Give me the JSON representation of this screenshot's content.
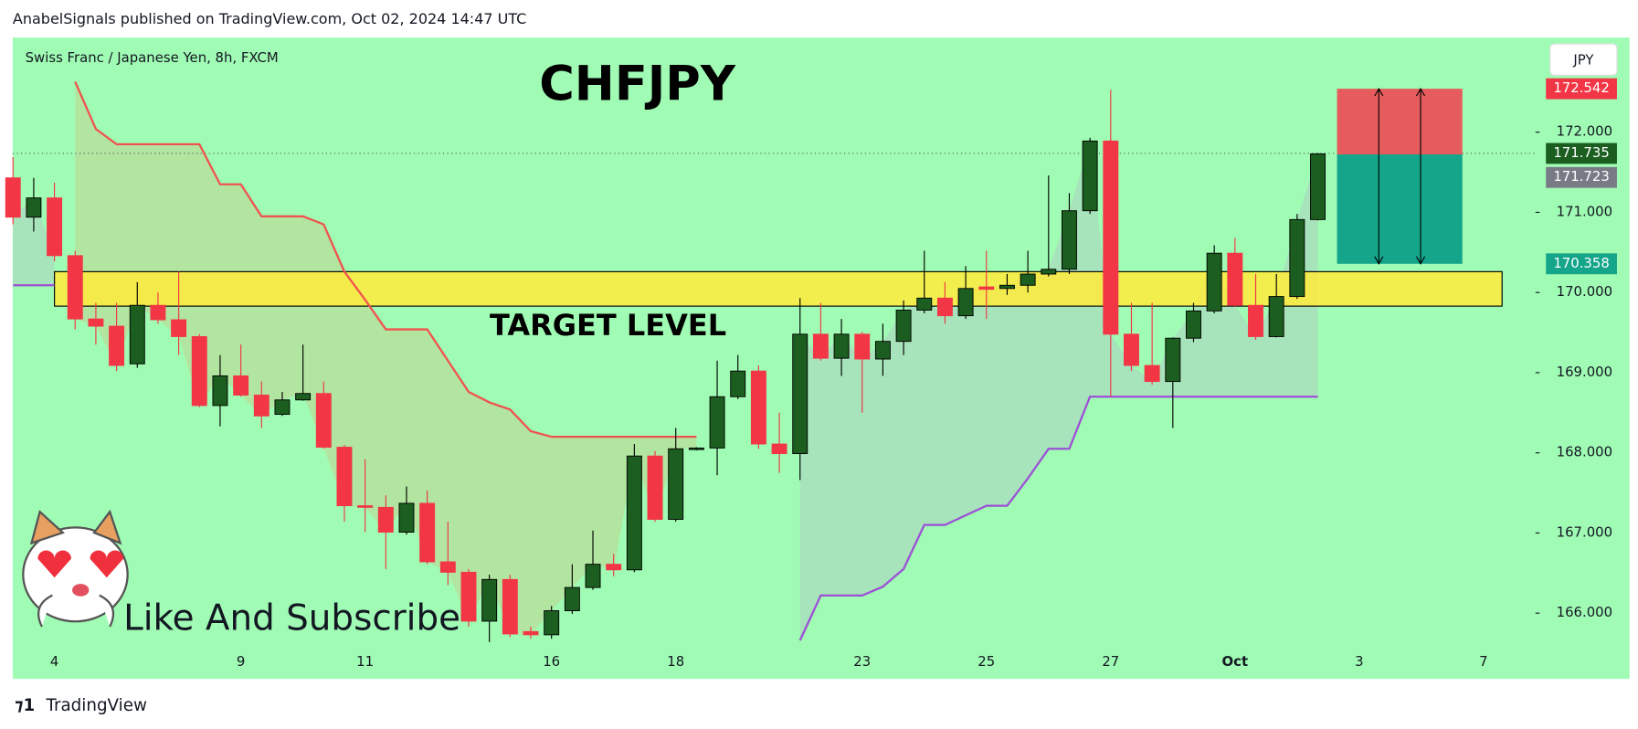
{
  "header": "AnabelSignals published on TradingView.com, Oct 02, 2024 14:47 UTC",
  "footer": "TradingView",
  "chart_data": {
    "type": "candlestick",
    "subtitle": "Swiss Franc / Japanese Yen, 8h, FXCM",
    "title": "CHFJPY",
    "annotation": "Like And Subscribe",
    "currency": "JPY",
    "categories": [
      null,
      null,
      "4",
      null,
      null,
      null,
      null,
      null,
      null,
      null,
      null,
      "9",
      null,
      null,
      null,
      null,
      null,
      "11",
      null,
      null,
      null,
      null,
      null,
      null,
      null,
      null,
      "16",
      null,
      null,
      null,
      null,
      null,
      "18",
      null,
      null,
      null,
      null,
      null,
      null,
      null,
      null,
      "23",
      null,
      null,
      null,
      null,
      null,
      "25",
      null,
      null,
      null,
      null,
      null,
      "27",
      null,
      null,
      null,
      null,
      null,
      "Oct",
      null,
      null,
      null,
      null,
      null,
      "3",
      null,
      null,
      null,
      null,
      null,
      "7"
    ],
    "open": [
      171.43,
      170.94,
      171.18,
      170.46,
      169.67,
      169.58,
      169.11,
      169.84,
      169.66,
      169.45,
      168.59,
      168.96,
      168.72,
      168.48,
      168.66,
      168.74,
      168.07,
      167.34,
      167.32,
      167.01,
      167.37,
      166.64,
      166.51,
      165.9,
      166.42,
      165.77,
      165.73,
      166.03,
      166.32,
      166.61,
      166.54,
      167.96,
      167.17,
      168.05,
      168.06,
      168.7,
      169.02,
      168.11,
      167.99,
      169.48,
      169.18,
      169.48,
      169.17,
      169.39,
      169.78,
      169.93,
      169.71,
      170.07,
      170.05,
      170.09,
      170.23,
      170.29,
      171.02,
      171.89,
      169.48,
      169.09,
      168.89,
      169.43,
      169.77,
      170.49,
      169.84,
      169.45,
      169.95,
      170.91,
      null,
      null,
      null,
      null,
      null,
      null,
      null,
      null
    ],
    "high": [
      171.69,
      171.43,
      171.37,
      170.52,
      169.87,
      169.87,
      170.13,
      170.0,
      170.26,
      169.48,
      169.22,
      169.35,
      168.89,
      168.76,
      169.35,
      168.89,
      168.1,
      167.92,
      167.47,
      167.58,
      167.53,
      167.14,
      166.55,
      166.48,
      166.48,
      165.83,
      166.09,
      166.61,
      167.03,
      166.74,
      168.11,
      168.02,
      168.31,
      168.07,
      169.15,
      169.22,
      169.09,
      168.5,
      169.93,
      169.87,
      169.67,
      169.51,
      169.61,
      169.9,
      170.52,
      170.13,
      170.33,
      170.52,
      170.23,
      170.52,
      171.46,
      171.24,
      171.93,
      172.53,
      169.87,
      169.87,
      169.44,
      169.87,
      170.59,
      170.68,
      170.23,
      170.23,
      170.98,
      171.74,
      null,
      null,
      null,
      null,
      null,
      null,
      null,
      null
    ],
    "low": [
      170.85,
      170.76,
      170.39,
      169.54,
      169.35,
      169.02,
      169.06,
      169.61,
      169.22,
      168.57,
      168.33,
      168.7,
      168.31,
      168.46,
      168.65,
      168.05,
      167.14,
      167.01,
      166.55,
      166.98,
      166.61,
      166.35,
      165.83,
      165.64,
      165.7,
      165.68,
      165.68,
      165.99,
      166.29,
      166.46,
      166.51,
      167.14,
      167.14,
      168.03,
      167.72,
      168.67,
      168.05,
      167.75,
      167.66,
      169.15,
      168.96,
      168.5,
      168.96,
      169.22,
      169.74,
      169.61,
      169.67,
      169.67,
      169.97,
      170.0,
      170.2,
      170.23,
      170.98,
      168.7,
      169.02,
      168.85,
      168.31,
      169.38,
      169.74,
      169.82,
      169.41,
      169.44,
      169.92,
      170.9,
      null,
      null,
      null,
      null,
      null,
      null,
      null,
      null
    ],
    "close": [
      170.94,
      171.18,
      170.46,
      169.67,
      169.58,
      169.09,
      169.84,
      169.66,
      169.45,
      168.59,
      168.96,
      168.72,
      168.46,
      168.66,
      168.74,
      168.07,
      167.34,
      167.32,
      167.01,
      167.37,
      166.64,
      166.51,
      165.9,
      166.42,
      165.74,
      165.73,
      166.03,
      166.32,
      166.61,
      166.54,
      167.96,
      167.17,
      168.05,
      168.06,
      168.7,
      169.02,
      168.11,
      167.99,
      169.48,
      169.18,
      169.48,
      169.17,
      169.39,
      169.78,
      169.93,
      169.71,
      170.05,
      170.04,
      170.09,
      170.23,
      170.29,
      171.02,
      171.89,
      169.48,
      169.09,
      168.89,
      169.43,
      169.77,
      170.49,
      169.84,
      169.45,
      169.95,
      170.91,
      171.73,
      null,
      null,
      null,
      null,
      null,
      null,
      null,
      null
    ],
    "up_color": "#1b5e20",
    "down_color": "#f23645",
    "series": [
      {
        "color": "#f0524f",
        "values": [
          null,
          null,
          null,
          172.63,
          172.04,
          171.85,
          171.85,
          171.85,
          171.85,
          171.85,
          171.35,
          171.35,
          170.95,
          170.95,
          170.95,
          170.85,
          170.26,
          169.91,
          169.54,
          169.54,
          169.54,
          169.15,
          168.76,
          168.63,
          168.54,
          168.27,
          168.2,
          168.2,
          168.2,
          168.2,
          168.2,
          168.2,
          168.2,
          168.2,
          null,
          null,
          null,
          null,
          null,
          null,
          null,
          null,
          null,
          null,
          null,
          null,
          null,
          null,
          null,
          null,
          null,
          null,
          null,
          null,
          null,
          null,
          null,
          null,
          null,
          null,
          null,
          null,
          null,
          null,
          null,
          null,
          null,
          null,
          null,
          null,
          null,
          null
        ]
      },
      {
        "color": "#9c4fd6",
        "values": [
          170.09,
          170.09,
          170.09,
          null,
          null,
          null,
          null,
          null,
          null,
          null,
          null,
          null,
          null,
          null,
          null,
          null,
          null,
          null,
          null,
          null,
          null,
          null,
          null,
          null,
          null,
          null,
          null,
          null,
          null,
          null,
          null,
          null,
          null,
          null,
          null,
          null,
          null,
          null,
          165.66,
          166.22,
          166.22,
          166.22,
          166.33,
          166.55,
          167.1,
          167.1,
          167.22,
          167.34,
          167.34,
          167.68,
          168.05,
          168.05,
          168.7,
          168.7,
          168.7,
          168.7,
          168.7,
          168.7,
          168.7,
          168.7,
          168.7,
          168.7,
          168.7,
          168.7,
          null,
          null,
          null,
          null,
          null,
          null,
          null,
          null
        ]
      }
    ],
    "target_zone": {
      "label": "TARGET LEVEL",
      "top": 170.26,
      "bottom": 169.83,
      "color": "#ffeb3b"
    },
    "position": {
      "stop": 172.542,
      "entry": 171.723,
      "target": 170.358,
      "stop_color": "#e65c5c",
      "target_color": "#14a58b"
    },
    "price_labels": [
      {
        "value": 172.542,
        "color": "#f23645"
      },
      {
        "value": 171.735,
        "color": "#1b5e20"
      },
      {
        "value": 171.723,
        "color": "#787b86"
      },
      {
        "value": 170.358,
        "color": "#14a58b"
      }
    ],
    "last_price": 171.735,
    "background": "#a0fcb4",
    "ylim": [
      165.18,
      173.18
    ],
    "yticks": [
      {
        "value": 166,
        "label": "166.000"
      },
      {
        "value": 167,
        "label": "167.000"
      },
      {
        "value": 168,
        "label": "168.000"
      },
      {
        "value": 169,
        "label": "169.000"
      },
      {
        "value": 170,
        "label": "170.000"
      },
      {
        "value": 171,
        "label": "171.000"
      },
      {
        "value": 172,
        "label": "172.000"
      }
    ],
    "grid": false
  }
}
